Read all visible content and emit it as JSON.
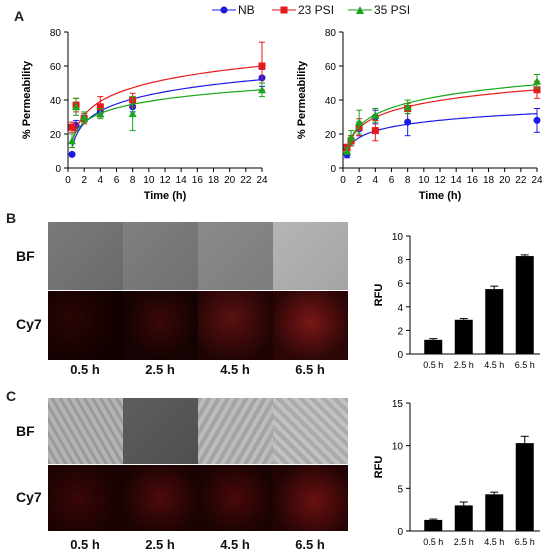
{
  "panels": {
    "a": "A",
    "b": "B",
    "c": "C"
  },
  "legend": [
    {
      "name": "NB",
      "color": "#1a1ae6",
      "marker": "circle"
    },
    {
      "name": "23 PSI",
      "color": "#e61a1a",
      "marker": "square"
    },
    {
      "name": "35 PSI",
      "color": "#1aa61a",
      "marker": "triangle"
    }
  ],
  "micro": {
    "row_labels": [
      "BF",
      "Cy7"
    ],
    "times": [
      "0.5 h",
      "2.5 h",
      "4.5 h",
      "6.5 h"
    ]
  },
  "chart_data": [
    {
      "type": "line",
      "panel": "A-left",
      "xlabel": "Time (h)",
      "ylabel": "% Permeability",
      "xlim": [
        0,
        24
      ],
      "ylim": [
        0,
        80
      ],
      "xticks": [
        0,
        2,
        4,
        6,
        8,
        10,
        12,
        14,
        16,
        18,
        20,
        22,
        24
      ],
      "yticks": [
        0,
        20,
        40,
        60,
        80
      ],
      "series": [
        {
          "name": "NB",
          "color": "#1a1ae6",
          "marker": "circle",
          "x": [
            0.5,
            1,
            2,
            4,
            8,
            24
          ],
          "y": [
            8,
            25,
            29,
            33,
            36,
            53
          ],
          "err": [
            1,
            3,
            2,
            3,
            3,
            5
          ],
          "fit": [
            12,
            52
          ]
        },
        {
          "name": "23 PSI",
          "color": "#e61a1a",
          "marker": "square",
          "x": [
            0.5,
            1,
            2,
            4,
            8,
            24
          ],
          "y": [
            24,
            37,
            29,
            36,
            40,
            60
          ],
          "err": [
            3,
            4,
            3,
            6,
            4,
            14
          ],
          "fit": [
            15,
            60
          ]
        },
        {
          "name": "35 PSI",
          "color": "#1aa61a",
          "marker": "triangle",
          "x": [
            0.5,
            1,
            2,
            4,
            8,
            24
          ],
          "y": [
            16,
            36,
            30,
            32,
            32,
            46
          ],
          "err": [
            4,
            5,
            3,
            3,
            10,
            4
          ],
          "fit": [
            16,
            46
          ]
        }
      ]
    },
    {
      "type": "line",
      "panel": "A-right",
      "xlabel": "Time (h)",
      "ylabel": "% Permeability",
      "xlim": [
        0,
        24
      ],
      "ylim": [
        0,
        80
      ],
      "xticks": [
        0,
        2,
        4,
        6,
        8,
        10,
        12,
        14,
        16,
        18,
        20,
        22,
        24
      ],
      "yticks": [
        0,
        20,
        40,
        60,
        80
      ],
      "series": [
        {
          "name": "NB",
          "color": "#1a1ae6",
          "marker": "circle",
          "x": [
            0.5,
            1,
            2,
            4,
            8,
            24
          ],
          "y": [
            8,
            16,
            23,
            30,
            27,
            28
          ],
          "err": [
            2,
            3,
            4,
            4,
            8,
            7
          ],
          "fit": [
            10,
            32
          ]
        },
        {
          "name": "23 PSI",
          "color": "#e61a1a",
          "marker": "square",
          "x": [
            0.5,
            1,
            2,
            4,
            8,
            24
          ],
          "y": [
            12,
            16,
            24,
            22,
            35,
            46
          ],
          "err": [
            2,
            3,
            5,
            6,
            3,
            5
          ],
          "fit": [
            11,
            46
          ]
        },
        {
          "name": "35 PSI",
          "color": "#1aa61a",
          "marker": "triangle",
          "x": [
            0.5,
            1,
            2,
            4,
            8,
            24
          ],
          "y": [
            10,
            18,
            27,
            31,
            36,
            51
          ],
          "err": [
            2,
            4,
            7,
            4,
            4,
            4
          ],
          "fit": [
            11,
            49
          ]
        }
      ]
    },
    {
      "type": "bar",
      "panel": "B",
      "categories": [
        "0.5 h",
        "2.5 h",
        "4.5 h",
        "6.5 h"
      ],
      "values": [
        1.2,
        2.9,
        5.5,
        8.3
      ],
      "err": [
        0.1,
        0.1,
        0.25,
        0.1
      ],
      "ylabel": "RFU",
      "ylim": [
        0,
        10
      ],
      "yticks": [
        0,
        2,
        4,
        6,
        8,
        10
      ]
    },
    {
      "type": "bar",
      "panel": "C",
      "categories": [
        "0.5 h",
        "2.5 h",
        "4.5 h",
        "6.5 h"
      ],
      "values": [
        1.3,
        3.0,
        4.3,
        10.3
      ],
      "err": [
        0.1,
        0.4,
        0.25,
        0.8
      ],
      "ylabel": "RFU",
      "ylim": [
        0,
        15
      ],
      "yticks": [
        0,
        5,
        10,
        15
      ]
    }
  ]
}
